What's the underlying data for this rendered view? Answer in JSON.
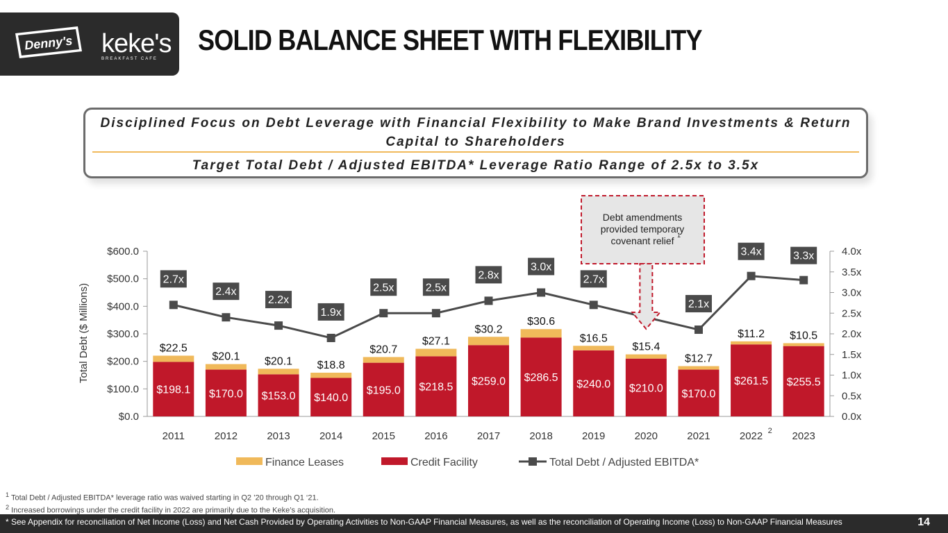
{
  "brand": {
    "dennys_logo": "Denny's",
    "kekes_logo": "keke's",
    "kekes_sub": "BREAKFAST CAFE"
  },
  "page_title": "SOLID BALANCE SHEET WITH FLEXIBILITY",
  "callout": {
    "line1": "Disciplined Focus on Debt Leverage with Financial Flexibility to Make Brand Investments & Return Capital to Shareholders",
    "line2": "Target Total Debt / Adjusted EBITDA* Leverage Ratio Range of 2.5x to 3.5x"
  },
  "chart_data": {
    "type": "bar",
    "categories": [
      "2011",
      "2012",
      "2013",
      "2014",
      "2015",
      "2016",
      "2017",
      "2018",
      "2019",
      "2020",
      "2021",
      "2022",
      "2023"
    ],
    "category_superscripts": {
      "2022": "2"
    },
    "series": [
      {
        "name": "Credit Facility",
        "type": "bar",
        "stacked": true,
        "color": "#c0182a",
        "values": [
          198.1,
          170.0,
          153.0,
          140.0,
          195.0,
          218.5,
          259.0,
          286.5,
          240.0,
          210.0,
          170.0,
          261.5,
          255.5
        ],
        "labels": [
          "$198.1",
          "$170.0",
          "$153.0",
          "$140.0",
          "$195.0",
          "$218.5",
          "$259.0",
          "$286.5",
          "$240.0",
          "$210.0",
          "$170.0",
          "$261.5",
          "$255.5"
        ]
      },
      {
        "name": "Finance Leases",
        "type": "bar",
        "stacked": true,
        "color": "#f0b95a",
        "values": [
          22.5,
          20.1,
          20.1,
          18.8,
          20.7,
          27.1,
          30.2,
          30.6,
          16.5,
          15.4,
          12.7,
          11.2,
          10.5
        ],
        "labels": [
          "$22.5",
          "$20.1",
          "$20.1",
          "$18.8",
          "$20.7",
          "$27.1",
          "$30.2",
          "$30.6",
          "$16.5",
          "$15.4",
          "$12.7",
          "$11.2",
          "$10.5"
        ]
      },
      {
        "name": "Total Debt / Adjusted EBITDA*",
        "type": "line",
        "axis": "right",
        "color": "#4a4a4a",
        "values": [
          2.7,
          2.4,
          2.2,
          1.9,
          2.5,
          2.5,
          2.8,
          3.0,
          2.7,
          null,
          2.1,
          3.4,
          3.3
        ],
        "labels": [
          "2.7x",
          "2.4x",
          "2.2x",
          "1.9x",
          "2.5x",
          "2.5x",
          "2.8x",
          "3.0x",
          "2.7x",
          "",
          "2.1x",
          "3.4x",
          "3.3x"
        ]
      }
    ],
    "ylabel": "Total Debt ($ Millions)",
    "ylim": [
      0,
      600
    ],
    "yticks": [
      "$0.0",
      "$100.0",
      "$200.0",
      "$300.0",
      "$400.0",
      "$500.0",
      "$600.0"
    ],
    "y2lim": [
      0,
      4
    ],
    "y2ticks": [
      "0.0x",
      "0.5x",
      "1.0x",
      "1.5x",
      "2.0x",
      "2.5x",
      "3.0x",
      "3.5x",
      "4.0x"
    ],
    "legend": [
      "Finance Leases",
      "Credit Facility",
      "Total Debt / Adjusted EBITDA*"
    ],
    "legend_position": "bottom",
    "annotation": {
      "text": "Debt amendments provided temporary covenant relief",
      "superscript": "1",
      "points_to": "2020"
    }
  },
  "footnotes": [
    {
      "mark": "1",
      "text": "Total Debt / Adjusted EBITDA* leverage ratio was waived starting in Q2 ’20 through Q1 ‘21."
    },
    {
      "mark": "2",
      "text": "Increased borrowings under the credit facility in 2022 are primarily due to the Keke’s acquisition."
    }
  ],
  "footer": {
    "note": "* See Appendix for reconciliation of Net Income (Loss) and Net Cash Provided by Operating Activities to Non-GAAP Financial Measures, as well as the reconciliation of Operating Income (Loss) to Non-GAAP Financial Measures",
    "page_number": "14"
  }
}
